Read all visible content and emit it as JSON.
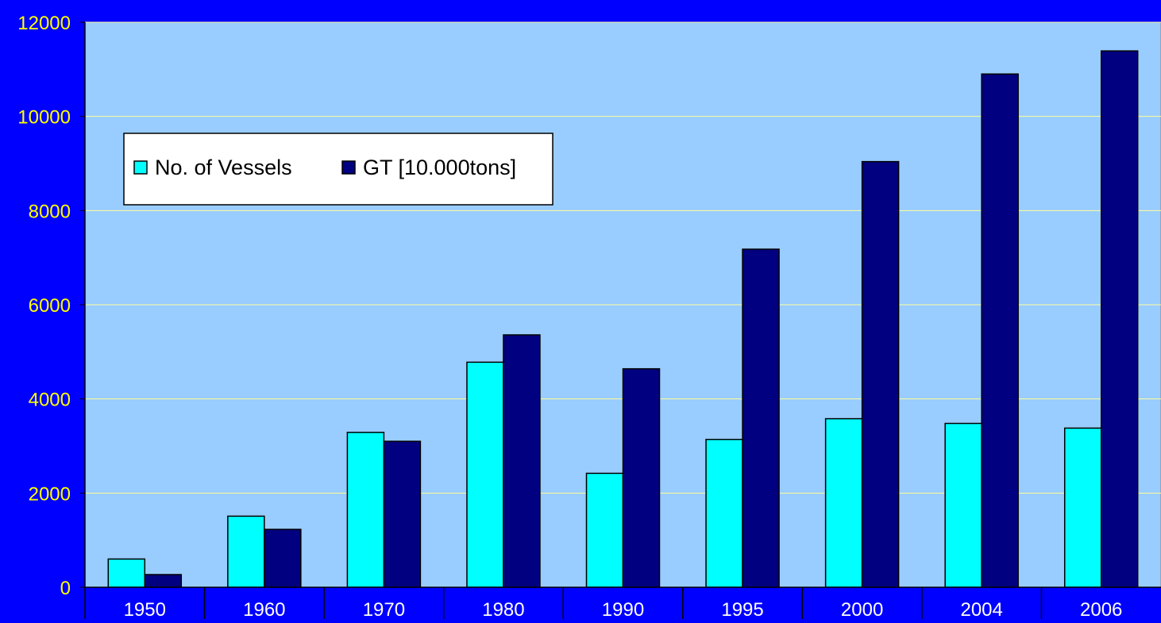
{
  "chart_data": {
    "type": "bar",
    "categories": [
      "1950",
      "1960",
      "1970",
      "1980",
      "1990",
      "1995",
      "2000",
      "2004",
      "2006"
    ],
    "series": [
      {
        "name": "No. of Vessels",
        "color": "#00ffff",
        "values": [
          600,
          1510,
          3290,
          4780,
          2420,
          3140,
          3580,
          3480,
          3380
        ]
      },
      {
        "name": "GT [10.000tons]",
        "color": "#000080",
        "values": [
          270,
          1230,
          3100,
          5360,
          4640,
          7180,
          9040,
          10900,
          11390
        ]
      }
    ],
    "yticks": [
      "0",
      "2000",
      "4000",
      "6000",
      "8000",
      "10000",
      "12000"
    ],
    "ylim": [
      0,
      12000
    ],
    "grid": true,
    "legend_position": "top-left",
    "colors": {
      "background": "#0000ff",
      "plot_area": "#99ccff",
      "gridline": "#ffff99",
      "tick_label": "#ffff00",
      "category_label": "#ffffff"
    }
  }
}
